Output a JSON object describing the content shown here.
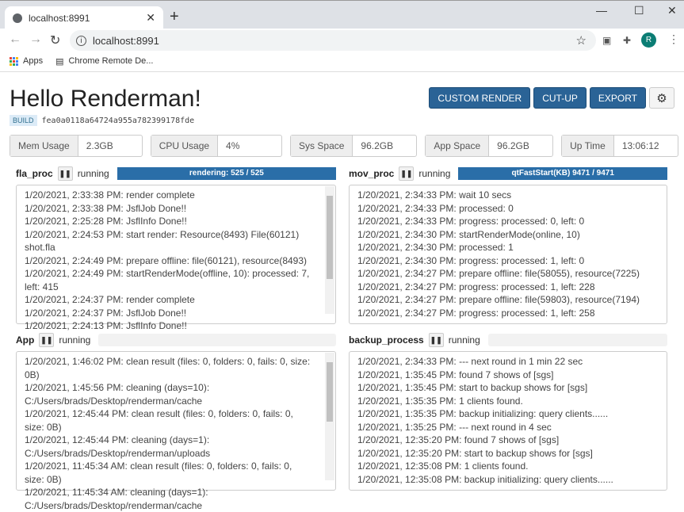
{
  "browser": {
    "tab_title": "localhost:8991",
    "url": "localhost:8991",
    "bookmarks": [
      "Apps",
      "Chrome Remote De..."
    ],
    "profile_initial": "R"
  },
  "header": {
    "title": "Hello Renderman!",
    "build_label": "BUILD",
    "build_hash": "fea0a0118a64724a955a782399178fde"
  },
  "toolbar": {
    "custom_render": "CUSTOM RENDER",
    "cut_up": "CUT-UP",
    "export": "EXPORT",
    "settings_icon": "gear-icon"
  },
  "stats": [
    {
      "label": "Mem Usage",
      "value": "2.3GB"
    },
    {
      "label": "CPU Usage",
      "value": "4%"
    },
    {
      "label": "Sys Space",
      "value": "96.2GB"
    },
    {
      "label": "App Space",
      "value": "96.2GB"
    },
    {
      "label": "Up Time",
      "value": "13:06:12"
    }
  ],
  "processes": [
    {
      "name": "fla_proc",
      "status": "running",
      "progress_text": "rendering: 525 / 525",
      "progress": 100,
      "scrollbar": true,
      "logs": [
        "1/20/2021, 2:33:38 PM: render complete",
        "1/20/2021, 2:33:38 PM: JsflJob Done!!",
        "1/20/2021, 2:25:28 PM: JsflInfo Done!!",
        "1/20/2021, 2:24:53 PM: start render: Resource(8493) File(60121) shot.fla",
        "1/20/2021, 2:24:49 PM: prepare offline: file(60121), resource(8493)",
        "1/20/2021, 2:24:49 PM: startRenderMode(offline, 10): processed: 7, left: 415",
        "1/20/2021, 2:24:37 PM: render complete",
        "1/20/2021, 2:24:37 PM: JsflJob Done!!",
        "1/20/2021, 2:24:13 PM: JsflInfo Done!!"
      ]
    },
    {
      "name": "mov_proc",
      "status": "running",
      "progress_text": "qtFastStart(KB) 9471 / 9471",
      "progress": 100,
      "scrollbar": false,
      "logs": [
        "1/20/2021, 2:34:33 PM: wait 10 secs",
        "1/20/2021, 2:34:33 PM: processed: 0",
        "1/20/2021, 2:34:33 PM: progress: processed: 0, left: 0",
        "1/20/2021, 2:34:30 PM: startRenderMode(online, 10)",
        "1/20/2021, 2:34:30 PM: processed: 1",
        "1/20/2021, 2:34:30 PM: progress: processed: 1, left: 0",
        "1/20/2021, 2:34:27 PM: prepare offline: file(58055), resource(7225)",
        "1/20/2021, 2:34:27 PM: progress: processed: 1, left: 228",
        "1/20/2021, 2:34:27 PM: prepare offline: file(59803), resource(7194)",
        "1/20/2021, 2:34:27 PM: progress: processed: 1, left: 258"
      ]
    },
    {
      "name": "App",
      "status": "running",
      "progress_text": "",
      "progress": 0,
      "scrollbar": true,
      "logs": [
        "1/20/2021, 1:46:02 PM: clean result (files: 0, folders: 0, fails: 0, size: 0B)",
        "1/20/2021, 1:45:56 PM: cleaning (days=10): C:/Users/brads/Desktop/renderman/cache",
        "1/20/2021, 12:45:44 PM: clean result (files: 0, folders: 0, fails: 0, size: 0B)",
        "1/20/2021, 12:45:44 PM: cleaning (days=1): C:/Users/brads/Desktop/renderman/uploads",
        "1/20/2021, 11:45:34 AM: clean result (files: 0, folders: 0, fails: 0, size: 0B)",
        "1/20/2021, 11:45:34 AM: cleaning (days=1): C:/Users/brads/Desktop/renderman/cache"
      ]
    },
    {
      "name": "backup_process",
      "status": "running",
      "progress_text": "",
      "progress": 0,
      "scrollbar": false,
      "logs": [
        "1/20/2021, 2:34:33 PM: --- next round in 1 min 22 sec",
        "1/20/2021, 1:35:45 PM: found 7 shows of [sgs]",
        "1/20/2021, 1:35:45 PM: start to backup shows for [sgs]",
        "1/20/2021, 1:35:35 PM: 1 clients found.",
        "1/20/2021, 1:35:35 PM: backup initializing: query clients......",
        "1/20/2021, 1:35:25 PM: --- next round in 4 sec",
        "1/20/2021, 12:35:20 PM: found 7 shows of [sgs]",
        "1/20/2021, 12:35:20 PM: start to backup shows for [sgs]",
        "1/20/2021, 12:35:08 PM: 1 clients found.",
        "1/20/2021, 12:35:08 PM: backup initializing: query clients......"
      ]
    }
  ],
  "colors": {
    "primary": "#2a6396",
    "progress": "#2a6ea8"
  }
}
